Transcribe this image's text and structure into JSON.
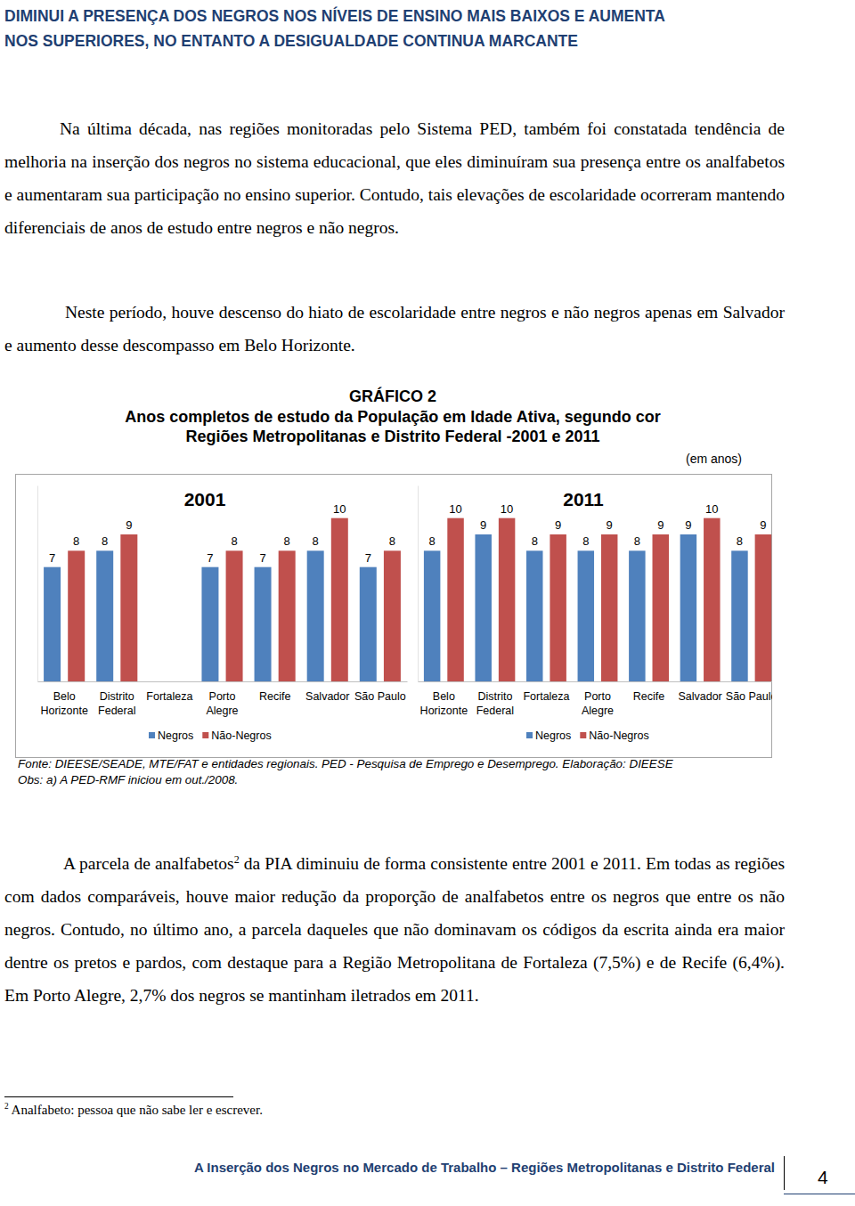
{
  "header": {
    "lines": [
      "DIMINUI A PRESENÇA DOS NEGROS NOS NÍVEIS DE ENSINO MAIS BAIXOS E AUMENTA",
      "NOS SUPERIORES, NO ENTANTO A DESIGUALDADE CONTINUA MARCANTE"
    ]
  },
  "paragraphs": [
    {
      "text": "Na última década, nas regiões monitoradas pelo Sistema PED, também foi constatada tendência de melhoria na inserção dos negros no sistema educacional, que eles diminuíram sua presença entre os analfabetos e aumentaram sua participação no ensino superior. Contudo, tais elevações de escolaridade ocorreram mantendo diferenciais de anos de estudo entre negros e não negros."
    },
    {
      "text": "Neste período, houve descenso do hiato de escolaridade entre negros e não negros apenas em Salvador e aumento desse descompasso em Belo Horizonte."
    }
  ],
  "figure": {
    "label": "GRÁFICO 2",
    "title_lines": [
      "Anos completos de estudo da População em Idade Ativa, segundo cor",
      "Regiões Metropolitanas e Distrito Federal -2001 e 2011"
    ],
    "unit": "(em anos)",
    "source": "Fonte: DIEESE/SEADE, MTE/FAT e entidades regionais. PED - Pesquisa de Emprego e Desemprego. Elaboração: DIEESE",
    "note": "Obs: a) A PED-RMF iniciou em out./2008."
  },
  "chart_data": [
    {
      "type": "bar",
      "title": "2001",
      "categories": [
        "Belo Horizonte",
        "Distrito Federal",
        "Fortaleza",
        "Porto Alegre",
        "Recife",
        "Salvador",
        "São Paulo"
      ],
      "series": [
        {
          "name": "Negros",
          "color": "#4f81bd",
          "values": [
            7,
            8,
            null,
            7,
            7,
            8,
            7
          ]
        },
        {
          "name": "Não-Negros",
          "color": "#c0504d",
          "values": [
            8,
            9,
            null,
            8,
            8,
            10,
            8
          ]
        }
      ],
      "ylim": [
        0,
        12
      ],
      "data_labels": true,
      "tick_labels": "x",
      "legend": "bottom"
    },
    {
      "type": "bar",
      "title": "2011",
      "categories": [
        "Belo Horizonte",
        "Distrito Federal",
        "Fortaleza",
        "Porto Alegre",
        "Recife",
        "Salvador",
        "São Paulo"
      ],
      "series": [
        {
          "name": "Negros",
          "color": "#4f81bd",
          "values": [
            8,
            9,
            8,
            8,
            8,
            9,
            8
          ]
        },
        {
          "name": "Não-Negros",
          "color": "#c0504d",
          "values": [
            10,
            10,
            9,
            9,
            9,
            10,
            9
          ]
        }
      ],
      "ylim": [
        0,
        12
      ],
      "data_labels": true,
      "tick_labels": "x",
      "legend": "bottom"
    }
  ],
  "closing": {
    "before": "A parcela de analfabetos",
    "note_ref": "2",
    "after": " da PIA diminuiu de forma consistente entre 2001 e 2011. Em todas as regiões com dados comparáveis, houve maior redução da proporção de analfabetos entre os negros que entre os não negros. Contudo, no último ano, a parcela daqueles que não dominavam os códigos da escrita ainda era maior dentre os pretos e pardos, com destaque para a Região Metropolitana de Fortaleza (7,5%) e de Recife (6,4%).  Em Porto Alegre, 2,7% dos negros se mantinham iletrados em 2011."
  },
  "footnote": {
    "ref": "2",
    "text": " Analfabeto: pessoa que não sabe ler e escrever."
  },
  "footer": {
    "title": "A Inserção dos Negros no Mercado de Trabalho – Regiões Metropolitanas e Distrito Federal",
    "page": "4"
  }
}
